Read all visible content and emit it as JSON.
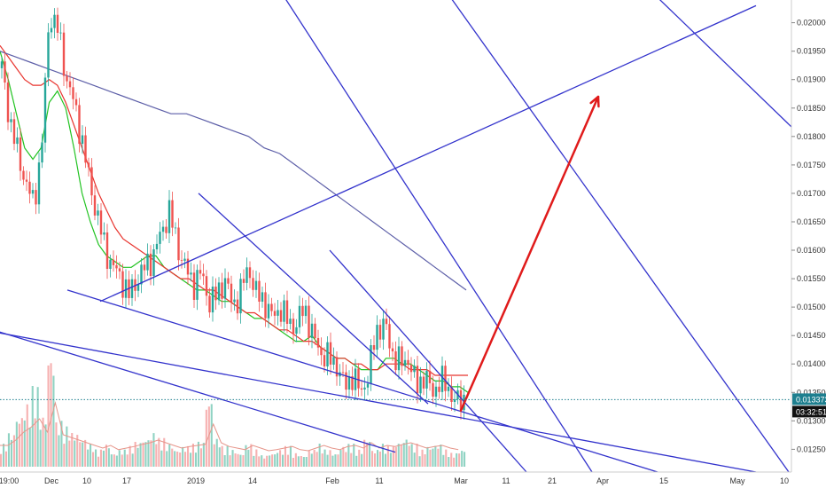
{
  "chart_data": {
    "type": "candlestick",
    "y_axis": {
      "range": [
        0.0121,
        0.0204
      ],
      "tick_labels": [
        "0.020000",
        "0.019500",
        "0.019000",
        "0.018500",
        "0.018000",
        "0.017500",
        "0.017000",
        "0.016500",
        "0.016000",
        "0.015500",
        "0.015000",
        "0.014500",
        "0.014000",
        "0.013500",
        "0.013000",
        "0.012500"
      ],
      "tick_values": [
        0.02,
        0.0195,
        0.019,
        0.0185,
        0.018,
        0.0175,
        0.017,
        0.0165,
        0.016,
        0.0155,
        0.015,
        0.0145,
        0.014,
        0.0135,
        0.013,
        0.0125
      ]
    },
    "x_axis": {
      "tick_labels": [
        "19:00",
        "Dec",
        "10",
        "17",
        "2019",
        "14",
        "Feb",
        "11",
        "Mar",
        "11",
        "21",
        "Apr",
        "15",
        "May",
        "10"
      ]
    },
    "current_price": {
      "value": 0.013373,
      "label": "0.013373",
      "countdown": "03:32:51"
    },
    "price_path": [
      0.0192,
      0.0183,
      0.0177,
      0.0172,
      0.0168,
      0.0178,
      0.0202,
      0.0199,
      0.0191,
      0.0186,
      0.018,
      0.0172,
      0.0166,
      0.016,
      0.0157,
      0.0155,
      0.0152,
      0.0155,
      0.0157,
      0.0159,
      0.0163,
      0.0167,
      0.0161,
      0.0157,
      0.0154,
      0.0156,
      0.0151,
      0.0152,
      0.0155,
      0.015,
      0.0153,
      0.0157,
      0.0152,
      0.0151,
      0.0148,
      0.015,
      0.0147,
      0.0147,
      0.015,
      0.0145,
      0.0142,
      0.0141,
      0.014,
      0.0136,
      0.0138,
      0.0135,
      0.0138,
      0.0146,
      0.0147,
      0.0142,
      0.014,
      0.0141,
      0.0136,
      0.0138,
      0.0135,
      0.0137,
      0.0136,
      0.0133,
      0.0134
    ],
    "volume": [
      0.2,
      0.3,
      0.45,
      0.55,
      0.7,
      0.45,
      1.0,
      0.4,
      0.35,
      0.3,
      0.25,
      0.2,
      0.15,
      0.2,
      0.12,
      0.15,
      0.18,
      0.22,
      0.25,
      0.3,
      0.25,
      0.2,
      0.15,
      0.18,
      0.2,
      0.22,
      0.6,
      0.25,
      0.18,
      0.15,
      0.12,
      0.2,
      0.15,
      0.1,
      0.12,
      0.15,
      0.18,
      0.12,
      0.1,
      0.15,
      0.2,
      0.15,
      0.12,
      0.18,
      0.2,
      0.15,
      0.25,
      0.15,
      0.2,
      0.18,
      0.22,
      0.25,
      0.2,
      0.15,
      0.18,
      0.2,
      0.15,
      0.12,
      0.15
    ],
    "series": [
      {
        "kind": "ma_short",
        "color": "#22c322",
        "values": [
          0.0195,
          0.019,
          0.0184,
          0.0178,
          0.0176,
          0.0178,
          0.0186,
          0.0188,
          0.0185,
          0.0178,
          0.017,
          0.0165,
          0.0161,
          0.0159,
          0.0158,
          0.0157,
          0.0157,
          0.0158,
          0.0159,
          0.0159,
          0.0157,
          0.0156,
          0.0155,
          0.0154,
          0.0153,
          0.0153,
          0.0152,
          0.0151,
          0.0151,
          0.015,
          0.0149,
          0.0148,
          0.0148,
          0.0147,
          0.0146,
          0.0145,
          0.0144,
          0.0144,
          0.0145,
          0.0143,
          0.0142,
          0.0141,
          0.0141,
          0.014,
          0.0139,
          0.0139,
          0.0139,
          0.0141,
          0.0141,
          0.014,
          0.014,
          0.0139,
          0.0138,
          0.0137,
          0.0137,
          0.0136,
          0.0136,
          0.0135
        ]
      },
      {
        "kind": "ma_mid",
        "color": "#e8342e",
        "values": [
          0.0196,
          0.0194,
          0.0192,
          0.019,
          0.0189,
          0.0189,
          0.019,
          0.0189,
          0.0186,
          0.0182,
          0.0178,
          0.0174,
          0.017,
          0.0167,
          0.0164,
          0.0162,
          0.0161,
          0.016,
          0.0159,
          0.0158,
          0.0157,
          0.0156,
          0.0155,
          0.0155,
          0.0154,
          0.0153,
          0.0153,
          0.0152,
          0.0151,
          0.015,
          0.0149,
          0.0149,
          0.0148,
          0.0147,
          0.0146,
          0.0146,
          0.0145,
          0.0144,
          0.0144,
          0.0143,
          0.0142,
          0.0141,
          0.0141,
          0.014,
          0.014,
          0.0139,
          0.0139,
          0.014,
          0.014,
          0.014,
          0.0139,
          0.0139,
          0.0139,
          0.0138,
          0.0138,
          0.0138,
          0.0138,
          0.0138
        ]
      },
      {
        "kind": "ma_long",
        "color": "#5d5fa8",
        "values": [
          0.0195,
          0.0194,
          0.0193,
          0.0192,
          0.0191,
          0.019,
          0.0189,
          0.0188,
          0.0187,
          0.0186,
          0.0185,
          0.0184,
          0.0184,
          0.0183,
          0.0182,
          0.0181,
          0.018,
          0.0178,
          0.0177,
          0.0175,
          0.0173,
          0.0171,
          0.0169,
          0.0167,
          0.0165,
          0.0163,
          0.0161,
          0.0159,
          0.0157,
          0.0155,
          0.0153
        ]
      }
    ],
    "trendlines": [
      {
        "color": "#3333cc",
        "points": [
          [
            -2,
            0.0149
          ],
          [
            12,
            0.01245
          ]
        ]
      },
      {
        "color": "#3333cc",
        "points": [
          [
            -2,
            0.01475
          ],
          [
            23,
            0.0121
          ]
        ]
      },
      {
        "color": "#3333cc",
        "points": [
          [
            2,
            0.0153
          ],
          [
            20,
            0.0121
          ]
        ]
      },
      {
        "color": "#3333cc",
        "points": [
          [
            3,
            0.0151
          ],
          [
            23,
            0.0203
          ]
        ]
      },
      {
        "color": "#3333cc",
        "points": [
          [
            6,
            0.017
          ],
          [
            13,
            0.0133
          ]
        ]
      },
      {
        "color": "#3333cc",
        "points": [
          [
            10,
            0.016
          ],
          [
            16,
            0.0121
          ]
        ]
      },
      {
        "color": "#3333cc",
        "points": [
          [
            8,
            0.021
          ],
          [
            18,
            0.0121
          ]
        ]
      },
      {
        "color": "#3333cc",
        "points": [
          [
            13,
            0.021
          ],
          [
            24,
            0.0121
          ]
        ]
      },
      {
        "color": "#3333cc",
        "points": [
          [
            19,
            0.021
          ],
          [
            26,
            0.0171
          ]
        ]
      }
    ],
    "projection": {
      "color": "#e01b1b",
      "from": [
        14,
        0.01318
      ],
      "to": [
        18,
        0.0187
      ]
    },
    "current_price_color": "#1e7f8f",
    "countdown_color": "#111111",
    "background": "#ffffff",
    "axis_text_color": "#333333"
  }
}
